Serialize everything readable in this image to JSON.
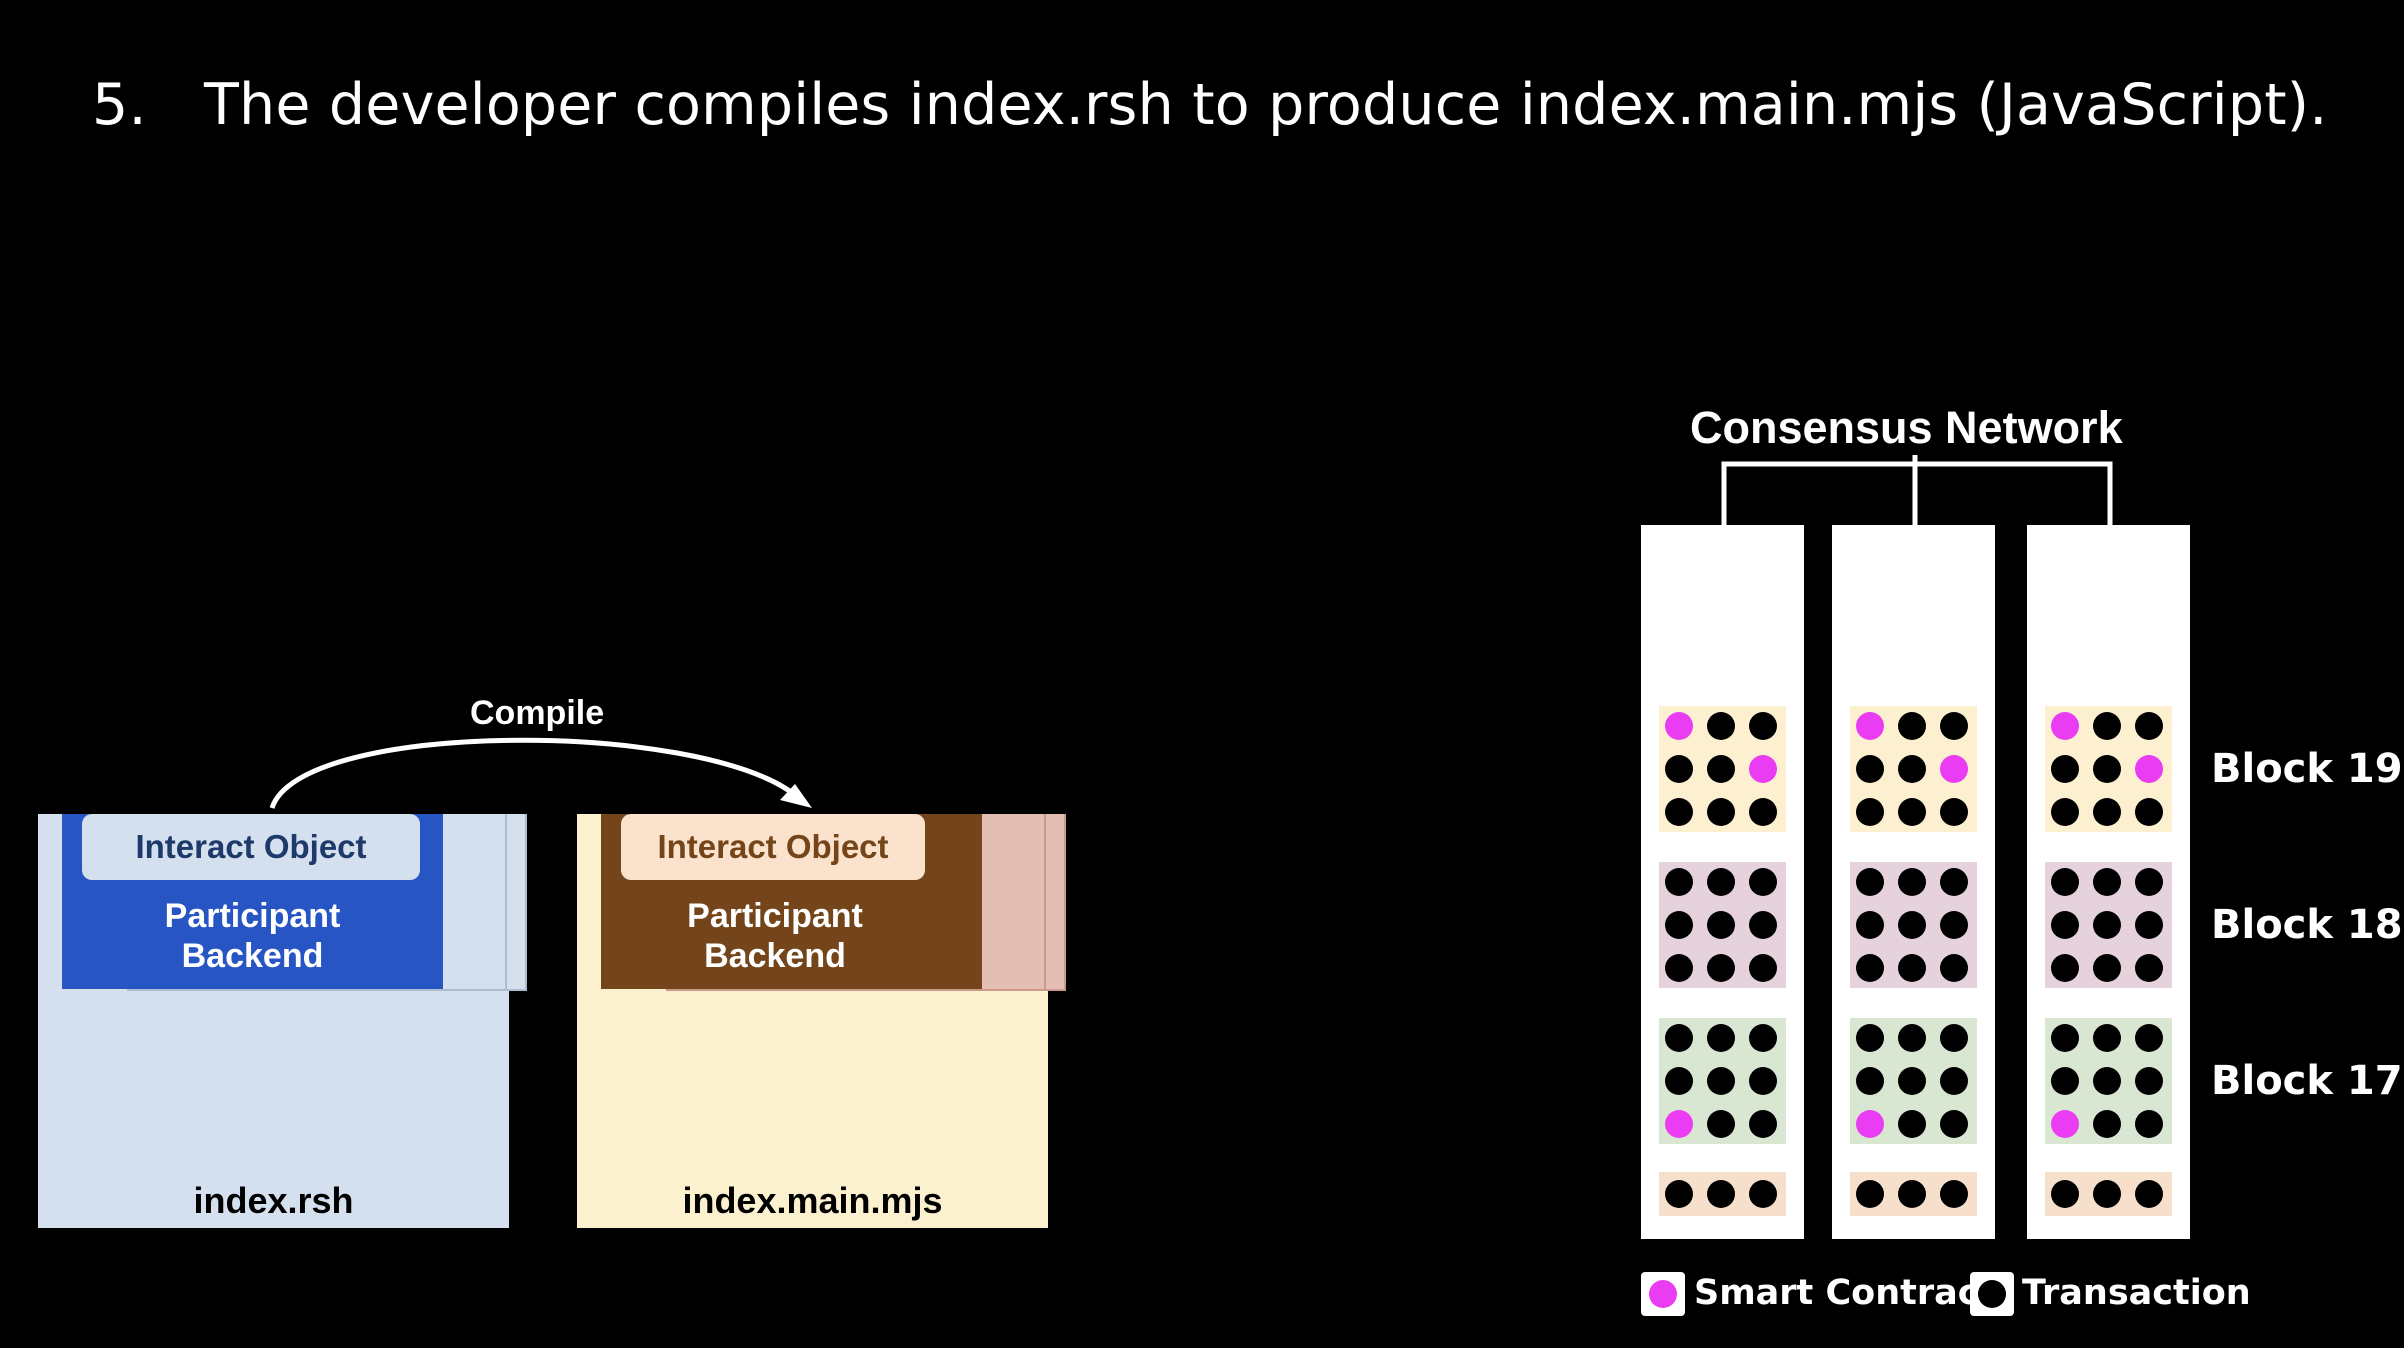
{
  "slide": {
    "step_number": "5.",
    "step_text": "The developer compiles index.rsh to produce index.main.mjs (JavaScript)."
  },
  "compile_label": "Compile",
  "source_file": {
    "name": "index.rsh",
    "interact_label": "Interact Object",
    "backend_line1": "Participant",
    "backend_line2": "Backend",
    "colors": {
      "box": "#d4e0ee",
      "card": "#2756c4",
      "pill": "#d4e0ee",
      "pill_text": "#1e3a6b"
    }
  },
  "output_file": {
    "name": "index.main.mjs",
    "interact_label": "Interact Object",
    "backend_line1": "Participant",
    "backend_line2": "Backend",
    "colors": {
      "box": "#fcf1cf",
      "card": "#74451a",
      "pill": "#fbe2cc",
      "pill_text": "#74451a"
    }
  },
  "network": {
    "title": "Consensus Network",
    "blocks": [
      {
        "label": "Block 19",
        "color": "#fcf0d0",
        "pattern": [
          [
            "m",
            "b",
            "b"
          ],
          [
            "b",
            "b",
            "m"
          ],
          [
            "b",
            "b",
            "b"
          ]
        ]
      },
      {
        "label": "Block 18",
        "color": "#e6d2dd",
        "pattern": [
          [
            "b",
            "b",
            "b"
          ],
          [
            "b",
            "b",
            "b"
          ],
          [
            "b",
            "b",
            "b"
          ]
        ]
      },
      {
        "label": "Block 17",
        "color": "#d8e6d2",
        "pattern": [
          [
            "b",
            "b",
            "b"
          ],
          [
            "b",
            "b",
            "b"
          ],
          [
            "m",
            "b",
            "b"
          ]
        ]
      },
      {
        "label": "",
        "color": "#f6e0cc",
        "pattern": [
          [
            "b",
            "b",
            "b"
          ]
        ]
      }
    ],
    "colors": {
      "smart_contract": "#ea3cf2",
      "transaction": "#000000"
    }
  },
  "legend": {
    "smart_contract_label": "Smart Contract",
    "transaction_label": "Transaction"
  }
}
